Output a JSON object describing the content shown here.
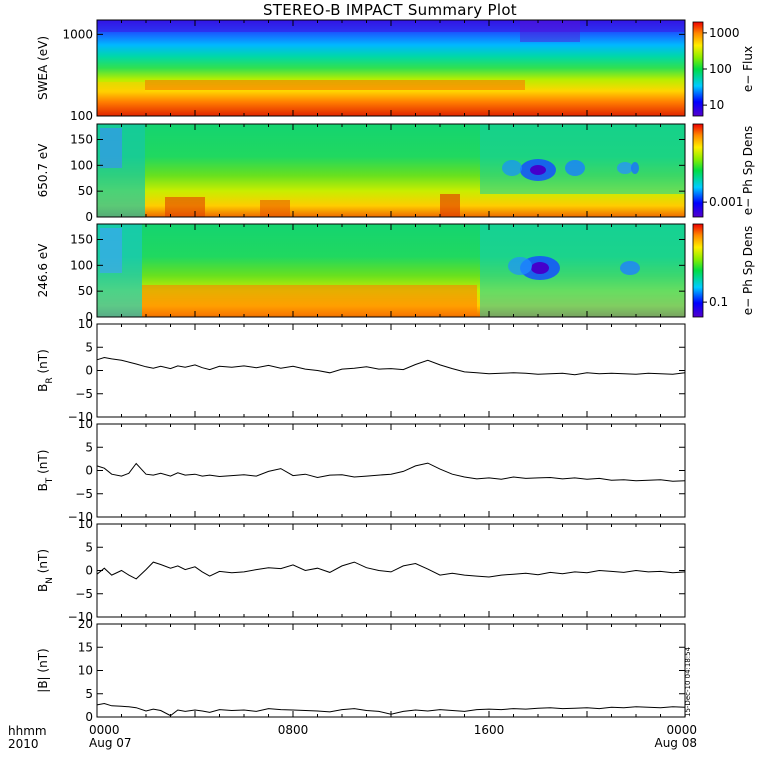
{
  "title": "STEREO-B IMPACT Summary Plot",
  "corner_labels": {
    "format": "hhmm",
    "year": "2010"
  },
  "timestamp_note": "15-Dec-10 04:18:54",
  "chart_data": [
    {
      "type": "heatmap",
      "ylabel": "SWEA (eV)",
      "y_scale": "log",
      "ylim": [
        100,
        1500
      ],
      "y_ticks": [
        100,
        1000
      ],
      "y_tick_labels": [
        "100",
        "1000"
      ],
      "colorbar": {
        "label": "e− Flux",
        "scale": "log",
        "range": [
          5,
          2000
        ],
        "ticks": [
          10,
          100,
          1000
        ],
        "tick_labels": [
          "10",
          "100",
          "1000"
        ]
      },
      "description_bands": "high flux (red) below ~150 eV, yellow/green near 200-500 eV, blue above ~1000 eV; red band broadens after 0200 and narrows after 1800"
    },
    {
      "type": "heatmap",
      "ylabel": "650.7 eV",
      "ylim": [
        0,
        180
      ],
      "y_ticks": [
        0,
        50,
        100,
        150
      ],
      "y_tick_labels": [
        "0",
        "50",
        "100",
        "150"
      ],
      "colorbar": {
        "label": "e− Ph Sp Dens",
        "scale": "log",
        "ticks": [
          0.001
        ],
        "tick_labels": [
          "0.001"
        ]
      },
      "features": [
        {
          "name": "blue depletion",
          "time_hours": 19.0,
          "pitch_angle_deg": 95
        },
        {
          "name": "blue depletion",
          "time_hours": 20.5,
          "pitch_angle_deg": 95
        },
        {
          "name": "blue depletion",
          "time_hours": 22.6,
          "pitch_angle_deg": 95
        }
      ]
    },
    {
      "type": "heatmap",
      "ylabel": "246.6 eV",
      "ylim": [
        0,
        180
      ],
      "y_ticks": [
        0,
        50,
        100,
        150
      ],
      "y_tick_labels": [
        "0",
        "50",
        "100",
        "150"
      ],
      "colorbar": {
        "label": "e− Ph Sp Dens",
        "scale": "log",
        "ticks": [
          0.1
        ],
        "tick_labels": [
          "0.1"
        ]
      },
      "features": [
        {
          "name": "blue depletion",
          "time_hours": 19.0,
          "pitch_angle_deg": 95
        },
        {
          "name": "blue depletion",
          "time_hours": 22.6,
          "pitch_angle_deg": 95
        }
      ]
    },
    {
      "type": "line",
      "ylabel": "B_R (nT)",
      "ylabel_main": "B",
      "ylabel_sub": "R",
      "ylabel_unit": " (nT)",
      "ylim": [
        -10,
        10
      ],
      "y_ticks": [
        -10,
        -5,
        0,
        5,
        10
      ],
      "y_tick_labels": [
        "−10",
        "−5",
        "0",
        "5",
        "10"
      ],
      "x_hours": [
        0,
        0.3,
        0.6,
        1,
        1.3,
        1.6,
        2,
        2.3,
        2.6,
        3,
        3.3,
        3.6,
        4,
        4.3,
        4.6,
        5,
        5.5,
        6,
        6.5,
        7,
        7.5,
        8,
        8.5,
        9,
        9.5,
        10,
        10.5,
        11,
        11.5,
        12,
        12.5,
        13,
        13.5,
        14,
        14.5,
        15,
        15.5,
        16,
        16.5,
        17,
        17.5,
        18,
        18.5,
        19,
        19.5,
        20,
        20.5,
        21,
        21.5,
        22,
        22.5,
        23,
        23.5,
        24
      ],
      "values": [
        2.3,
        2.8,
        2.5,
        2.2,
        1.8,
        1.4,
        0.8,
        0.5,
        0.9,
        0.4,
        1.0,
        0.7,
        1.2,
        0.6,
        0.2,
        0.9,
        0.7,
        1.0,
        0.6,
        1.1,
        0.5,
        0.9,
        0.3,
        0.0,
        -0.5,
        0.3,
        0.5,
        0.8,
        0.3,
        0.4,
        0.2,
        1.3,
        2.2,
        1.2,
        0.4,
        -0.3,
        -0.5,
        -0.7,
        -0.6,
        -0.5,
        -0.6,
        -0.8,
        -0.7,
        -0.6,
        -0.9,
        -0.5,
        -0.7,
        -0.6,
        -0.7,
        -0.8,
        -0.6,
        -0.7,
        -0.8,
        -0.5
      ]
    },
    {
      "type": "line",
      "ylabel": "B_T (nT)",
      "ylabel_main": "B",
      "ylabel_sub": "T",
      "ylabel_unit": " (nT)",
      "ylim": [
        -10,
        10
      ],
      "y_ticks": [
        -10,
        -5,
        0,
        5,
        10
      ],
      "y_tick_labels": [
        "−10",
        "−5",
        "0",
        "5",
        "10"
      ],
      "x_hours": [
        0,
        0.3,
        0.6,
        1,
        1.3,
        1.6,
        2,
        2.3,
        2.6,
        3,
        3.3,
        3.6,
        4,
        4.3,
        4.6,
        5,
        5.5,
        6,
        6.5,
        7,
        7.5,
        8,
        8.5,
        9,
        9.5,
        10,
        10.5,
        11,
        11.5,
        12,
        12.5,
        13,
        13.5,
        14,
        14.5,
        15,
        15.5,
        16,
        16.5,
        17,
        17.5,
        18,
        18.5,
        19,
        19.5,
        20,
        20.5,
        21,
        21.5,
        22,
        22.5,
        23,
        23.5,
        24
      ],
      "values": [
        1.0,
        0.5,
        -0.8,
        -1.2,
        -0.6,
        1.5,
        -0.8,
        -1.0,
        -0.6,
        -1.2,
        -0.5,
        -1.0,
        -0.8,
        -1.2,
        -1.0,
        -1.3,
        -1.1,
        -0.9,
        -1.2,
        -0.2,
        0.4,
        -1.1,
        -0.8,
        -1.5,
        -1.0,
        -0.9,
        -1.4,
        -1.2,
        -1.0,
        -0.8,
        -0.2,
        1.0,
        1.6,
        0.3,
        -0.8,
        -1.4,
        -1.8,
        -1.6,
        -1.9,
        -1.4,
        -1.7,
        -1.6,
        -1.5,
        -1.8,
        -1.6,
        -1.9,
        -1.7,
        -2.1,
        -2.0,
        -2.2,
        -2.1,
        -2.0,
        -2.3,
        -2.2
      ]
    },
    {
      "type": "line",
      "ylabel": "B_N (nT)",
      "ylabel_main": "B",
      "ylabel_sub": "N",
      "ylabel_unit": " (nT)",
      "ylim": [
        -10,
        10
      ],
      "y_ticks": [
        -10,
        -5,
        0,
        5,
        10
      ],
      "y_tick_labels": [
        "−10",
        "−5",
        "0",
        "5",
        "10"
      ],
      "x_hours": [
        0,
        0.3,
        0.6,
        1,
        1.3,
        1.6,
        2,
        2.3,
        2.6,
        3,
        3.3,
        3.6,
        4,
        4.3,
        4.6,
        5,
        5.5,
        6,
        6.5,
        7,
        7.5,
        8,
        8.5,
        9,
        9.5,
        10,
        10.5,
        11,
        11.5,
        12,
        12.5,
        13,
        13.5,
        14,
        14.5,
        15,
        15.5,
        16,
        16.5,
        17,
        17.5,
        18,
        18.5,
        19,
        19.5,
        20,
        20.5,
        21,
        21.5,
        22,
        22.5,
        23,
        23.5,
        24
      ],
      "values": [
        -0.8,
        0.5,
        -1.0,
        0.0,
        -1.0,
        -1.8,
        0.2,
        1.8,
        1.3,
        0.5,
        1.0,
        0.2,
        0.8,
        -0.3,
        -1.2,
        -0.2,
        -0.5,
        -0.3,
        0.2,
        0.6,
        0.4,
        1.2,
        0.0,
        0.5,
        -0.4,
        1.0,
        1.8,
        0.6,
        0.0,
        -0.3,
        1.0,
        1.5,
        0.3,
        -1.0,
        -0.6,
        -1.0,
        -1.2,
        -1.4,
        -1.0,
        -0.8,
        -0.6,
        -0.9,
        -0.4,
        -0.7,
        -0.3,
        -0.5,
        0.0,
        -0.2,
        -0.4,
        0.0,
        -0.3,
        -0.2,
        -0.5,
        -0.3
      ]
    },
    {
      "type": "line",
      "ylabel": "|B| (nT)",
      "ylim": [
        0,
        20
      ],
      "y_ticks": [
        0,
        5,
        10,
        15,
        20
      ],
      "y_tick_labels": [
        "0",
        "5",
        "10",
        "15",
        "20"
      ],
      "x_hours": [
        0,
        0.3,
        0.6,
        1,
        1.3,
        1.6,
        2,
        2.3,
        2.6,
        3,
        3.3,
        3.6,
        4,
        4.3,
        4.6,
        5,
        5.5,
        6,
        6.5,
        7,
        7.5,
        8,
        8.5,
        9,
        9.5,
        10,
        10.5,
        11,
        11.5,
        12,
        12.5,
        13,
        13.5,
        14,
        14.5,
        15,
        15.5,
        16,
        16.5,
        17,
        17.5,
        18,
        18.5,
        19,
        19.5,
        20,
        20.5,
        21,
        21.5,
        22,
        22.5,
        23,
        23.5,
        24
      ],
      "values": [
        2.6,
        2.9,
        2.4,
        2.3,
        2.2,
        2.0,
        1.3,
        1.7,
        1.4,
        0.3,
        1.5,
        1.2,
        1.5,
        1.3,
        1.0,
        1.6,
        1.4,
        1.5,
        1.2,
        1.8,
        1.6,
        1.5,
        1.4,
        1.3,
        1.1,
        1.6,
        1.8,
        1.4,
        1.2,
        0.6,
        1.2,
        1.5,
        1.3,
        1.6,
        1.4,
        1.2,
        1.6,
        1.7,
        1.6,
        1.8,
        1.7,
        1.9,
        2.0,
        1.8,
        1.9,
        2.0,
        1.8,
        2.1,
        2.0,
        2.2,
        2.1,
        2.0,
        2.2,
        2.1
      ]
    }
  ],
  "x_axis": {
    "range_hours": [
      0,
      24
    ],
    "ticks": [
      {
        "hours": 0,
        "label": "0000",
        "date": "Aug 07"
      },
      {
        "hours": 8,
        "label": "0800",
        "date": ""
      },
      {
        "hours": 16,
        "label": "1600",
        "date": ""
      },
      {
        "hours": 24,
        "label": "0000",
        "date": "Aug 08"
      }
    ]
  }
}
